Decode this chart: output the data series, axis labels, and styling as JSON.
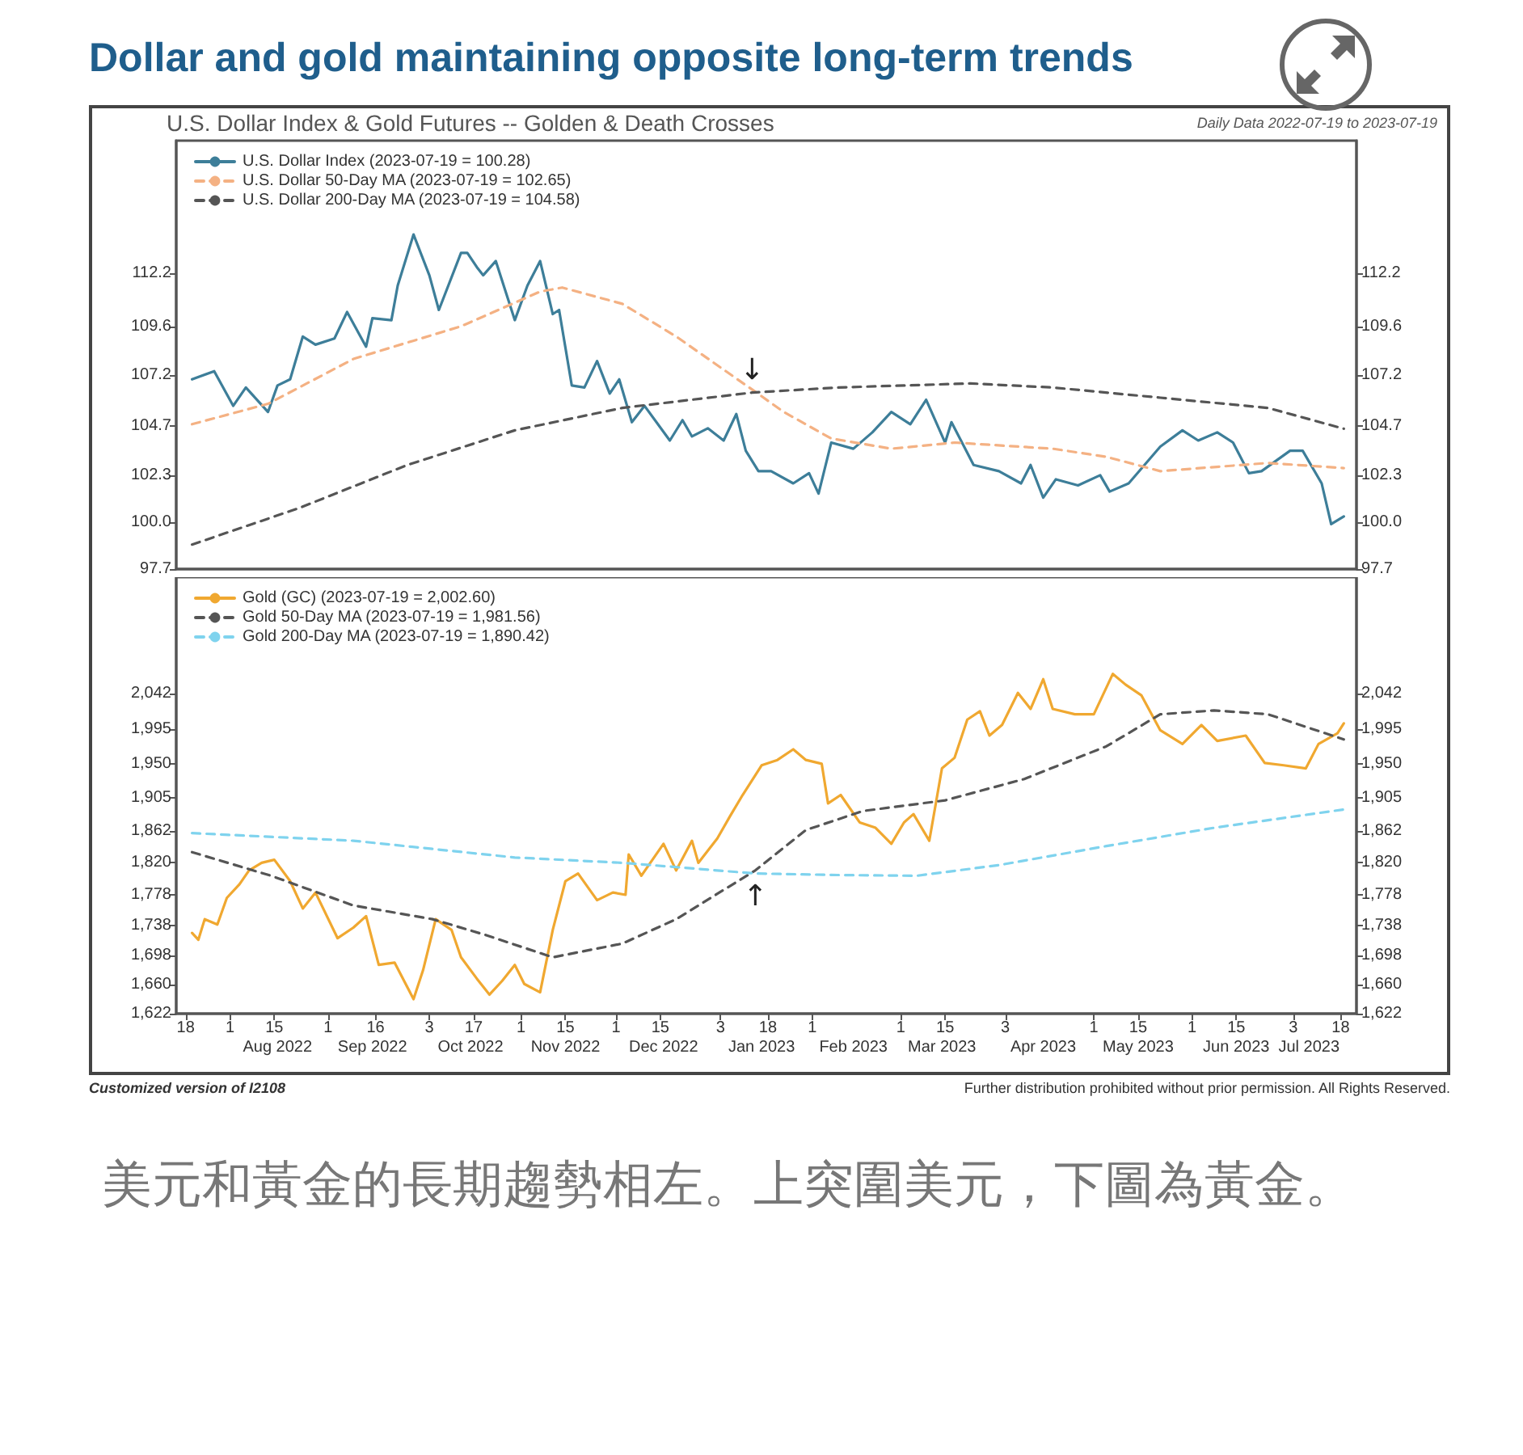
{
  "chart_data": [
    {
      "type": "line",
      "title": "Dollar and gold maintaining opposite long-term trends",
      "subtitle": "U.S. Dollar Index & Gold Futures -- Golden & Death Crosses",
      "annotations": [
        "Daily Data 2022-07-19 to 2023-07-19",
        {
          "text": "↓",
          "x": "2023-01-13",
          "y": 106.35
        }
      ],
      "xlim": [
        "2022-07-15",
        "2023-07-23"
      ],
      "ylim": [
        97.7,
        118.7
      ],
      "yticks": [
        97.7,
        {
          "value": 100,
          "label": "100.0"
        },
        102.3,
        104.7,
        107.2,
        109.6,
        112.2
      ],
      "y2lim": [
        97.7,
        118.7
      ],
      "y2ticks": [
        97.7,
        {
          "value": 100,
          "label": "100.0"
        },
        102.3,
        104.7,
        107.2,
        109.6,
        112.2
      ],
      "tick_labels": "y",
      "legend": "top left",
      "marker": "none",
      "series": [
        {
          "name": "U.S. Dollar Index (2023-07-19 = 100.28)",
          "color": "#3d7e99",
          "line_style": "solid",
          "x": [
            "2022-07-20",
            "2022-07-27",
            "2022-08-02",
            "2022-08-06",
            "2022-08-13",
            "2022-08-16",
            "2022-08-20",
            "2022-08-24",
            "2022-08-28",
            "2022-09-03",
            "2022-09-07",
            "2022-09-13",
            "2022-09-15",
            "2022-09-21",
            "2022-09-23",
            "2022-09-28",
            "2022-10-03",
            "2022-10-06",
            "2022-10-13",
            "2022-10-15",
            "2022-10-18",
            "2022-10-20",
            "2022-10-24",
            "2022-10-30",
            "2022-11-03",
            "2022-11-07",
            "2022-11-11",
            "2022-11-13",
            "2022-11-17",
            "2022-11-21",
            "2022-11-25",
            "2022-11-29",
            "2022-12-02",
            "2022-12-06",
            "2022-12-10",
            "2022-12-18",
            "2022-12-22",
            "2022-12-25",
            "2022-12-30",
            "2023-01-04",
            "2023-01-08",
            "2023-01-11",
            "2023-01-15",
            "2023-01-19",
            "2023-01-26",
            "2023-01-31",
            "2023-02-03",
            "2023-02-07",
            "2023-02-14",
            "2023-02-20",
            "2023-02-26",
            "2023-03-04",
            "2023-03-09",
            "2023-03-15",
            "2023-03-17",
            "2023-03-24",
            "2023-04-01",
            "2023-04-08",
            "2023-04-11",
            "2023-04-15",
            "2023-04-19",
            "2023-04-26",
            "2023-05-03",
            "2023-05-06",
            "2023-05-12",
            "2023-05-17",
            "2023-05-22",
            "2023-05-29",
            "2023-06-03",
            "2023-06-09",
            "2023-06-14",
            "2023-06-19",
            "2023-06-23",
            "2023-07-02",
            "2023-07-06",
            "2023-07-12",
            "2023-07-15",
            "2023-07-19"
          ],
          "values": [
            107.0,
            107.4,
            105.7,
            106.6,
            105.4,
            106.7,
            107.0,
            109.1,
            108.7,
            109.0,
            110.3,
            108.6,
            110.0,
            109.9,
            111.6,
            114.1,
            112.1,
            110.4,
            113.2,
            113.2,
            112.5,
            112.1,
            112.8,
            109.9,
            111.6,
            112.8,
            110.2,
            110.4,
            106.7,
            106.6,
            107.9,
            106.3,
            107.0,
            104.9,
            105.7,
            104.0,
            105.0,
            104.2,
            104.6,
            104.0,
            105.3,
            103.5,
            102.5,
            102.5,
            101.9,
            102.4,
            101.4,
            103.9,
            103.6,
            104.4,
            105.4,
            104.8,
            106.0,
            103.9,
            104.9,
            102.8,
            102.5,
            101.9,
            102.8,
            101.2,
            102.1,
            101.8,
            102.3,
            101.5,
            101.9,
            102.8,
            103.7,
            104.5,
            104.0,
            104.4,
            103.9,
            102.4,
            102.5,
            103.5,
            103.5,
            101.9,
            99.9,
            100.28
          ]
        },
        {
          "name": "U.S. Dollar 50-Day MA (2023-07-19 = 102.65)",
          "color": "#f4b183",
          "line_style": "dashed",
          "x": [
            "2022-07-20",
            "2022-08-13",
            "2022-09-09",
            "2022-10-13",
            "2022-11-07",
            "2022-11-14",
            "2022-12-03",
            "2022-12-20",
            "2023-01-13",
            "2023-01-23",
            "2023-02-07",
            "2023-02-26",
            "2023-03-18",
            "2023-04-18",
            "2023-05-05",
            "2023-05-22",
            "2023-06-08",
            "2023-06-25",
            "2023-07-19"
          ],
          "values": [
            104.8,
            105.8,
            108.0,
            109.6,
            111.3,
            111.5,
            110.7,
            109.1,
            106.5,
            105.4,
            104.1,
            103.6,
            103.9,
            103.6,
            103.2,
            102.5,
            102.7,
            102.9,
            102.65
          ]
        },
        {
          "name": "U.S. Dollar 200-Day MA (2023-07-19 = 104.58)",
          "color": "#555555",
          "line_style": "dashed",
          "x": [
            "2022-07-20",
            "2022-08-23",
            "2022-09-26",
            "2022-10-30",
            "2022-12-03",
            "2023-01-13",
            "2023-02-09",
            "2023-03-23",
            "2023-04-18",
            "2023-05-22",
            "2023-06-25",
            "2023-07-19"
          ],
          "values": [
            98.9,
            100.7,
            102.8,
            104.5,
            105.6,
            106.35,
            106.6,
            106.8,
            106.6,
            106.1,
            105.6,
            104.58
          ]
        }
      ]
    },
    {
      "type": "line",
      "annotations": [
        {
          "text": "↑",
          "x": "2023-01-14",
          "y": 1806
        },
        "Customized version of I2108",
        "Further distribution prohibited without prior permission. All Rights Reserved.",
        "美元和黃金的長期趨勢相左。上突圍美元，下圖為黃金。"
      ],
      "xlim": [
        "2022-07-15",
        "2023-07-23"
      ],
      "xticks": [
        {
          "value": "2022-07-18",
          "label": "18"
        },
        {
          "value": "2022-08-01",
          "label": "1"
        },
        {
          "value": "2022-08-15",
          "label": "15"
        },
        {
          "value": "2022-09-01",
          "label": "1"
        },
        {
          "value": "2022-09-16",
          "label": "16"
        },
        {
          "value": "2022-10-03",
          "label": "3"
        },
        {
          "value": "2022-10-17",
          "label": "17"
        },
        {
          "value": "2022-11-01",
          "label": "1"
        },
        {
          "value": "2022-11-15",
          "label": "15"
        },
        {
          "value": "2022-12-01",
          "label": "1"
        },
        {
          "value": "2022-12-15",
          "label": "15"
        },
        {
          "value": "2023-01-03",
          "label": "3"
        },
        {
          "value": "2023-01-18",
          "label": "18"
        },
        {
          "value": "2023-02-01",
          "label": "1"
        },
        {
          "value": "2023-03-01",
          "label": "1"
        },
        {
          "value": "2023-03-15",
          "label": "15"
        },
        {
          "value": "2023-04-03",
          "label": "3"
        },
        {
          "value": "2023-05-01",
          "label": "1"
        },
        {
          "value": "2023-05-15",
          "label": "15"
        },
        {
          "value": "2023-06-01",
          "label": "1"
        },
        {
          "value": "2023-06-15",
          "label": "15"
        },
        {
          "value": "2023-07-03",
          "label": "3"
        },
        {
          "value": "2023-07-18",
          "label": "18"
        }
      ],
      "x2lim": [
        "2022-07-15",
        "2023-07-23"
      ],
      "x2ticks": [
        {
          "value": "2022-08-16",
          "label": "Aug 2022"
        },
        {
          "value": "2022-09-15",
          "label": "Sep 2022"
        },
        {
          "value": "2022-10-16",
          "label": "Oct 2022"
        },
        {
          "value": "2022-11-15",
          "label": "Nov 2022"
        },
        {
          "value": "2022-12-16",
          "label": "Dec 2022"
        },
        {
          "value": "2023-01-16",
          "label": "Jan 2023"
        },
        {
          "value": "2023-02-14",
          "label": "Feb 2023"
        },
        {
          "value": "2023-03-14",
          "label": "Mar 2023"
        },
        {
          "value": "2023-04-15",
          "label": "Apr 2023"
        },
        {
          "value": "2023-05-15",
          "label": "May 2023"
        },
        {
          "value": "2023-06-15",
          "label": "Jun 2023"
        },
        {
          "value": "2023-07-08",
          "label": "Jul 2023"
        }
      ],
      "ylim": [
        1622,
        2195
      ],
      "yticks": [
        {
          "value": 1622,
          "label": "1,622"
        },
        {
          "value": 1660,
          "label": "1,660"
        },
        {
          "value": 1698,
          "label": "1,698"
        },
        {
          "value": 1738,
          "label": "1,738"
        },
        {
          "value": 1778,
          "label": "1,778"
        },
        {
          "value": 1820,
          "label": "1,820"
        },
        {
          "value": 1862,
          "label": "1,862"
        },
        {
          "value": 1905,
          "label": "1,905"
        },
        {
          "value": 1950,
          "label": "1,950"
        },
        {
          "value": 1995,
          "label": "1,995"
        },
        {
          "value": 2042,
          "label": "2,042"
        }
      ],
      "y2lim": [
        1622,
        2195
      ],
      "y2ticks": [
        {
          "value": 1622,
          "label": "1,622"
        },
        {
          "value": 1660,
          "label": "1,660"
        },
        {
          "value": 1698,
          "label": "1,698"
        },
        {
          "value": 1738,
          "label": "1,738"
        },
        {
          "value": 1778,
          "label": "1,778"
        },
        {
          "value": 1820,
          "label": "1,820"
        },
        {
          "value": 1862,
          "label": "1,862"
        },
        {
          "value": 1905,
          "label": "1,905"
        },
        {
          "value": 1950,
          "label": "1,950"
        },
        {
          "value": 1995,
          "label": "1,995"
        },
        {
          "value": 2042,
          "label": "2,042"
        }
      ],
      "legend": "top left",
      "marker": "none",
      "series": [
        {
          "name": "Gold (GC) (2023-07-19 = 2,002.60)",
          "color": "#f0a830",
          "line_style": "solid",
          "x": [
            "2022-07-20",
            "2022-07-22",
            "2022-07-24",
            "2022-07-28",
            "2022-07-31",
            "2022-08-04",
            "2022-08-07",
            "2022-08-11",
            "2022-08-15",
            "2022-08-20",
            "2022-08-24",
            "2022-08-28",
            "2022-09-04",
            "2022-09-09",
            "2022-09-13",
            "2022-09-17",
            "2022-09-22",
            "2022-09-28",
            "2022-10-01",
            "2022-10-05",
            "2022-10-10",
            "2022-10-13",
            "2022-10-18",
            "2022-10-22",
            "2022-10-26",
            "2022-10-30",
            "2022-11-02",
            "2022-11-07",
            "2022-11-11",
            "2022-11-15",
            "2022-11-19",
            "2022-11-25",
            "2022-11-30",
            "2022-12-04",
            "2022-12-05",
            "2022-12-09",
            "2022-12-16",
            "2022-12-20",
            "2022-12-25",
            "2022-12-27",
            "2023-01-02",
            "2023-01-06",
            "2023-01-10",
            "2023-01-16",
            "2023-01-21",
            "2023-01-26",
            "2023-01-30",
            "2023-02-04",
            "2023-02-06",
            "2023-02-10",
            "2023-02-16",
            "2023-02-21",
            "2023-02-26",
            "2023-03-02",
            "2023-03-05",
            "2023-03-10",
            "2023-03-14",
            "2023-03-18",
            "2023-03-22",
            "2023-03-26",
            "2023-03-29",
            "2023-04-02",
            "2023-04-07",
            "2023-04-11",
            "2023-04-15",
            "2023-04-18",
            "2023-04-25",
            "2023-05-01",
            "2023-05-07",
            "2023-05-11",
            "2023-05-16",
            "2023-05-22",
            "2023-05-29",
            "2023-06-04",
            "2023-06-09",
            "2023-06-18",
            "2023-06-24",
            "2023-06-30",
            "2023-07-07",
            "2023-07-11",
            "2023-07-17",
            "2023-07-19"
          ],
          "values": [
            1728,
            1719,
            1746,
            1739,
            1774,
            1792,
            1810,
            1820,
            1824,
            1796,
            1760,
            1781,
            1721,
            1735,
            1750,
            1686,
            1689,
            1641,
            1679,
            1746,
            1732,
            1696,
            1668,
            1647,
            1665,
            1686,
            1661,
            1650,
            1732,
            1796,
            1806,
            1771,
            1781,
            1778,
            1831,
            1803,
            1845,
            1810,
            1849,
            1820,
            1852,
            1881,
            1909,
            1948,
            1955,
            1969,
            1955,
            1950,
            1898,
            1909,
            1873,
            1866,
            1845,
            1873,
            1884,
            1849,
            1944,
            1958,
            2008,
            2019,
            1987,
            2001,
            2043,
            2022,
            2061,
            2022,
            2015,
            2015,
            2068,
            2054,
            2040,
            1994,
            1976,
            2001,
            1980,
            1987,
            1951,
            1948,
            1944,
            1976,
            1990,
            2003
          ]
        },
        {
          "name": "Gold 50-Day MA (2023-07-19 = 1,981.56)",
          "color": "#555555",
          "line_style": "dashed",
          "x": [
            "2022-07-20",
            "2022-08-14",
            "2022-09-09",
            "2022-10-04",
            "2022-10-21",
            "2022-11-11",
            "2022-12-03",
            "2022-12-20",
            "2023-01-14",
            "2023-01-30",
            "2023-02-17",
            "2023-03-15",
            "2023-04-09",
            "2023-05-05",
            "2023-05-22",
            "2023-06-08",
            "2023-06-25",
            "2023-07-19"
          ],
          "values": [
            1834,
            1803,
            1764,
            1746,
            1725,
            1696,
            1714,
            1746,
            1810,
            1863,
            1888,
            1902,
            1930,
            1973,
            2015,
            2020,
            2015,
            1982
          ]
        },
        {
          "name": "Gold 200-Day MA (2023-07-19 = 1,890.42)",
          "color": "#7fd3ee",
          "line_style": "dashed",
          "x": [
            "2022-07-20",
            "2022-09-09",
            "2022-10-30",
            "2022-12-03",
            "2023-01-14",
            "2023-02-09",
            "2023-03-06",
            "2023-04-01",
            "2023-05-05",
            "2023-06-08",
            "2023-07-19"
          ],
          "values": [
            1859,
            1849,
            1827,
            1820,
            1806,
            1804,
            1803,
            1817,
            1842,
            1866,
            1890
          ]
        }
      ]
    }
  ]
}
